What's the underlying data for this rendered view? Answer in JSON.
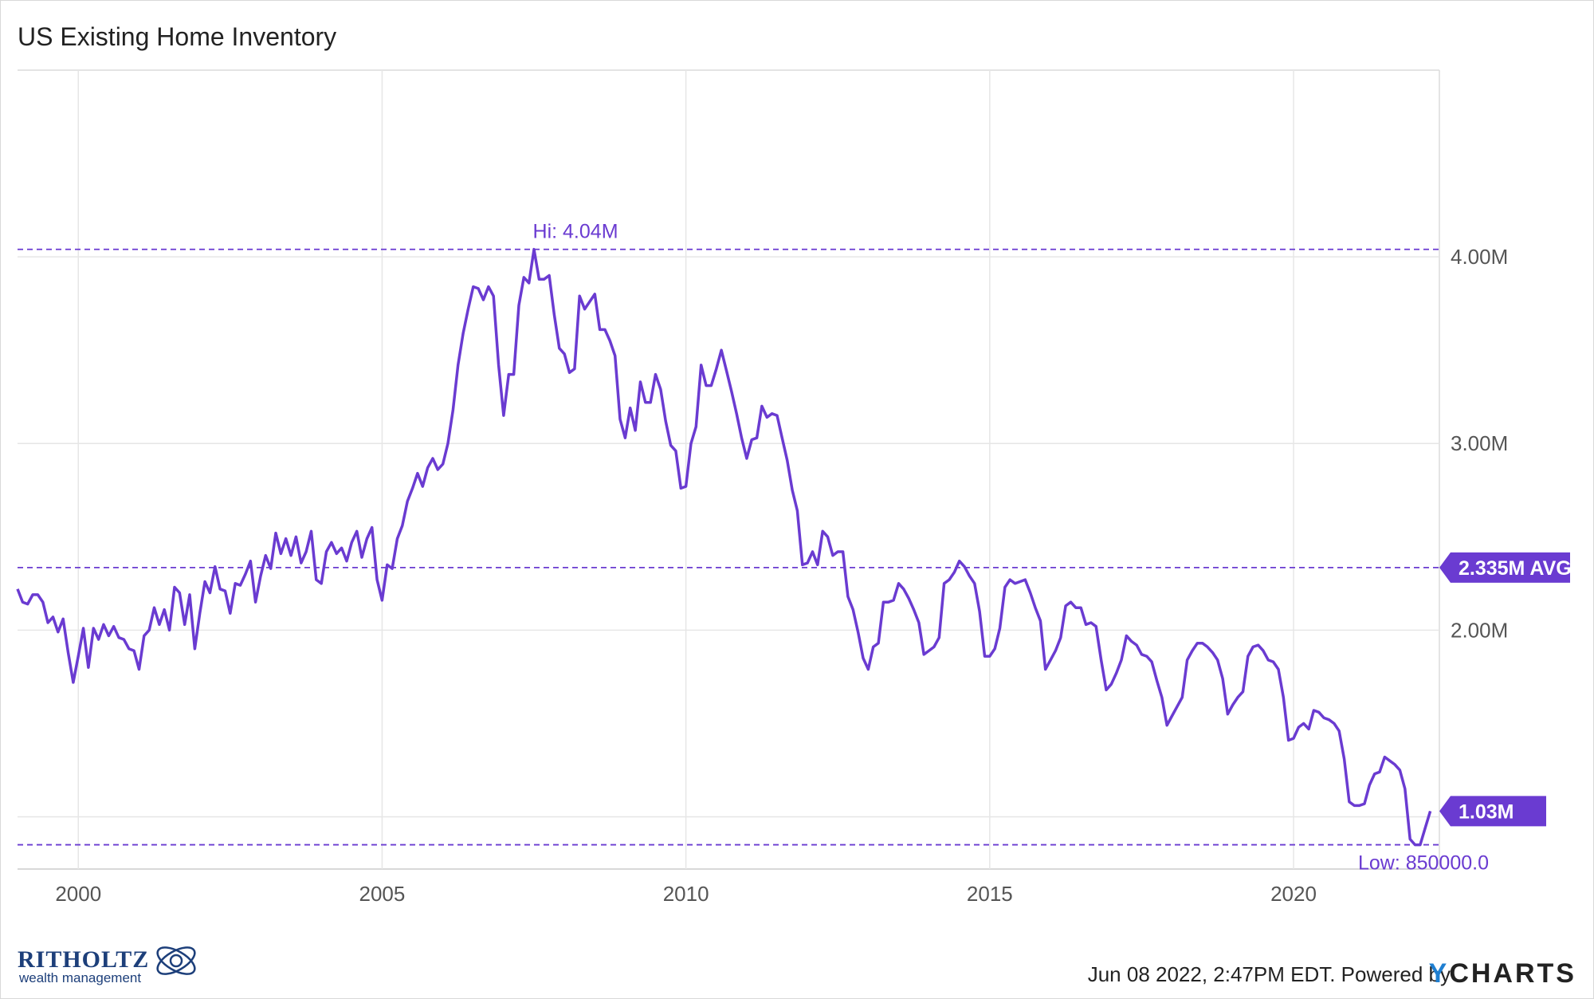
{
  "title": "US Existing Home Inventory",
  "footer": {
    "timestamp": "Jun 08 2022, 2:47PM EDT. Powered by",
    "brand_y": "Y",
    "brand_rest": "CHARTS",
    "logo_name": "RITHOLTZ",
    "logo_subtitle": "wealth management"
  },
  "colors": {
    "line": "#6a3bd1",
    "grid": "#e6e6e6",
    "axis_text": "#555555",
    "brand_blue": "#1f7fd1",
    "logo_navy": "#1d3f7a"
  },
  "chart_data": {
    "type": "line",
    "title": "US Existing Home Inventory",
    "xlabel": "",
    "ylabel": "",
    "x_start": "1999-01",
    "x_step": "month",
    "xlim": [
      1999.0,
      2022.4
    ],
    "ylim": [
      0.72,
      5.0
    ],
    "x_ticks": [
      2000,
      2005,
      2010,
      2015,
      2020
    ],
    "x_tick_labels": [
      "2000",
      "2005",
      "2010",
      "2015",
      "2020"
    ],
    "y_ticks": [
      1.0,
      2.0,
      3.0,
      4.0
    ],
    "y_tick_labels": [
      "",
      "2.00M",
      "3.00M",
      "4.00M"
    ],
    "grid": true,
    "series": [
      {
        "values": [
          2.22,
          2.15,
          2.14,
          2.19,
          2.19,
          2.15,
          2.04,
          2.07,
          1.99,
          2.06,
          1.88,
          1.72,
          1.86,
          2.01,
          1.8,
          2.01,
          1.95,
          2.03,
          1.97,
          2.02,
          1.96,
          1.95,
          1.9,
          1.89,
          1.79,
          1.97,
          2.0,
          2.12,
          2.03,
          2.11,
          2.0,
          2.23,
          2.2,
          2.03,
          2.19,
          1.9,
          2.09,
          2.26,
          2.2,
          2.34,
          2.22,
          2.21,
          2.09,
          2.25,
          2.24,
          2.3,
          2.37,
          2.15,
          2.29,
          2.4,
          2.33,
          2.52,
          2.41,
          2.49,
          2.4,
          2.5,
          2.36,
          2.42,
          2.53,
          2.27,
          2.25,
          2.42,
          2.47,
          2.41,
          2.44,
          2.37,
          2.47,
          2.53,
          2.39,
          2.49,
          2.55,
          2.27,
          2.16,
          2.35,
          2.33,
          2.49,
          2.56,
          2.69,
          2.76,
          2.84,
          2.77,
          2.87,
          2.92,
          2.86,
          2.89,
          3.0,
          3.18,
          3.42,
          3.59,
          3.72,
          3.84,
          3.83,
          3.77,
          3.84,
          3.79,
          3.42,
          3.15,
          3.37,
          3.37,
          3.74,
          3.89,
          3.86,
          4.04,
          3.88,
          3.88,
          3.9,
          3.69,
          3.51,
          3.48,
          3.38,
          3.4,
          3.79,
          3.72,
          3.76,
          3.8,
          3.61,
          3.61,
          3.55,
          3.47,
          3.13,
          3.03,
          3.19,
          3.07,
          3.33,
          3.22,
          3.22,
          3.37,
          3.29,
          3.12,
          2.99,
          2.96,
          2.76,
          2.77,
          3.0,
          3.09,
          3.42,
          3.31,
          3.31,
          3.4,
          3.5,
          3.39,
          3.28,
          3.16,
          3.03,
          2.92,
          3.02,
          3.03,
          3.2,
          3.14,
          3.16,
          3.15,
          3.03,
          2.91,
          2.75,
          2.64,
          2.35,
          2.36,
          2.42,
          2.35,
          2.53,
          2.5,
          2.4,
          2.42,
          2.42,
          2.18,
          2.11,
          1.99,
          1.85,
          1.79,
          1.91,
          1.93,
          2.15,
          2.15,
          2.16,
          2.25,
          2.22,
          2.17,
          2.11,
          2.04,
          1.87,
          1.89,
          1.91,
          1.96,
          2.25,
          2.27,
          2.31,
          2.37,
          2.34,
          2.29,
          2.25,
          2.1,
          1.86,
          1.86,
          1.9,
          2.01,
          2.23,
          2.27,
          2.25,
          2.26,
          2.27,
          2.2,
          2.12,
          2.05,
          1.79,
          1.84,
          1.89,
          1.96,
          2.13,
          2.15,
          2.12,
          2.12,
          2.03,
          2.04,
          2.02,
          1.84,
          1.68,
          1.71,
          1.77,
          1.84,
          1.97,
          1.94,
          1.92,
          1.87,
          1.86,
          1.83,
          1.73,
          1.64,
          1.49,
          1.54,
          1.59,
          1.64,
          1.84,
          1.89,
          1.93,
          1.93,
          1.91,
          1.88,
          1.84,
          1.74,
          1.55,
          1.6,
          1.64,
          1.67,
          1.86,
          1.91,
          1.92,
          1.89,
          1.84,
          1.83,
          1.79,
          1.64,
          1.41,
          1.42,
          1.48,
          1.5,
          1.47,
          1.57,
          1.56,
          1.53,
          1.52,
          1.5,
          1.46,
          1.31,
          1.08,
          1.06,
          1.06,
          1.07,
          1.17,
          1.23,
          1.24,
          1.32,
          1.3,
          1.28,
          1.25,
          1.15,
          0.88,
          0.85,
          0.85,
          0.94,
          1.03
        ]
      }
    ],
    "reference_lines": [
      {
        "value": 4.04,
        "label": "Hi: 4.04M"
      },
      {
        "value": 2.335,
        "label": "2.335M AVG"
      },
      {
        "value": 0.85,
        "label": "Low: 850000.0"
      }
    ],
    "last_value_label": "1.03M"
  }
}
